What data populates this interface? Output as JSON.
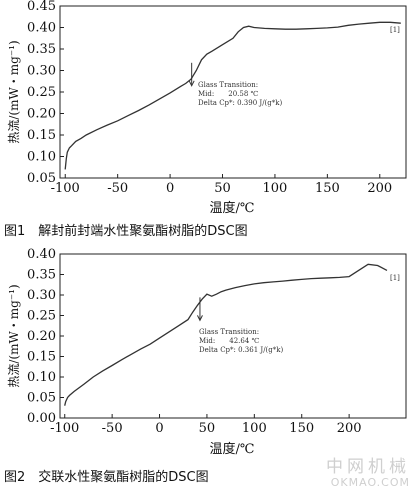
{
  "captions": {
    "fig1": "图1　解封前封端水性聚氨酯树脂的DSC图",
    "fig2": "图2　交联水性聚氨酯树脂的DSC图"
  },
  "watermark": {
    "line1": "中网机械",
    "line2": "OKMAO.COM"
  },
  "chart_data": [
    {
      "type": "line",
      "xlabel": "温度/℃",
      "ylabel": "热流/(mW・mg⁻¹)",
      "xlim": [
        -105,
        225
      ],
      "ylim": [
        0.05,
        0.45
      ],
      "xticks": [
        -100,
        -50,
        0,
        50,
        100,
        150,
        200
      ],
      "yticks": [
        0.05,
        0.1,
        0.15,
        0.2,
        0.25,
        0.3,
        0.35,
        0.4,
        0.45
      ],
      "ytick_labels": [
        "0.05",
        "0.10",
        "0.15",
        "0.20",
        "0.25",
        "0.30",
        "0.35",
        "0.40",
        "0.45"
      ],
      "annotation": {
        "lines": [
          "Glass Transition:",
          "Mid:　　20.58 ℃",
          "Delta Cp*:  0.390 J/(g*k)"
        ],
        "x": 20.58,
        "y": 0.29
      },
      "corner_label": "[1]",
      "series": [
        {
          "x": [
            -100,
            -99,
            -98,
            -96,
            -94,
            -90,
            -85,
            -80,
            -70,
            -60,
            -50,
            -40,
            -30,
            -20,
            -10,
            0,
            10,
            15,
            20,
            25,
            30,
            35,
            40,
            50,
            60,
            65,
            70,
            75,
            80,
            90,
            100,
            110,
            120,
            130,
            140,
            150,
            160,
            170,
            180,
            190,
            200,
            210,
            220
          ],
          "y": [
            0.07,
            0.095,
            0.11,
            0.12,
            0.125,
            0.135,
            0.142,
            0.15,
            0.162,
            0.173,
            0.183,
            0.195,
            0.207,
            0.22,
            0.234,
            0.248,
            0.263,
            0.27,
            0.28,
            0.3,
            0.325,
            0.338,
            0.345,
            0.36,
            0.375,
            0.39,
            0.4,
            0.403,
            0.4,
            0.398,
            0.397,
            0.396,
            0.396,
            0.397,
            0.398,
            0.399,
            0.401,
            0.405,
            0.408,
            0.41,
            0.412,
            0.412,
            0.41
          ]
        }
      ]
    },
    {
      "type": "line",
      "xlabel": "温度/℃",
      "ylabel": "热流/(mW・mg⁻¹)",
      "xlim": [
        -105,
        260
      ],
      "ylim": [
        0.0,
        0.4
      ],
      "xticks": [
        -100,
        -50,
        0,
        50,
        100,
        150,
        200
      ],
      "yticks": [
        0.0,
        0.05,
        0.1,
        0.15,
        0.2,
        0.25,
        0.3,
        0.35,
        0.4
      ],
      "ytick_labels": [
        "0.00",
        "0.05",
        "0.10",
        "0.15",
        "0.20",
        "0.25",
        "0.30",
        "0.35",
        "0.40"
      ],
      "annotation": {
        "lines": [
          "Glass Transition:",
          "Mid:　　42.64 ℃",
          "Delta Cp*:  0.361 J/(g*k)"
        ],
        "x": 42.64,
        "y": 0.265
      },
      "corner_label": "[1]",
      "series": [
        {
          "x": [
            -100,
            -99,
            -97,
            -95,
            -90,
            -80,
            -70,
            -60,
            -50,
            -40,
            -30,
            -20,
            -10,
            0,
            10,
            20,
            30,
            35,
            40,
            45,
            50,
            55,
            60,
            65,
            70,
            80,
            90,
            100,
            110,
            120,
            130,
            140,
            150,
            160,
            170,
            180,
            190,
            200,
            210,
            220,
            230,
            240
          ],
          "y": [
            0.03,
            0.04,
            0.05,
            0.055,
            0.065,
            0.082,
            0.1,
            0.115,
            0.128,
            0.142,
            0.155,
            0.168,
            0.18,
            0.195,
            0.21,
            0.225,
            0.24,
            0.258,
            0.275,
            0.29,
            0.302,
            0.297,
            0.302,
            0.308,
            0.312,
            0.318,
            0.323,
            0.327,
            0.33,
            0.332,
            0.334,
            0.336,
            0.338,
            0.34,
            0.341,
            0.342,
            0.343,
            0.345,
            0.36,
            0.375,
            0.372,
            0.36
          ]
        }
      ]
    }
  ]
}
